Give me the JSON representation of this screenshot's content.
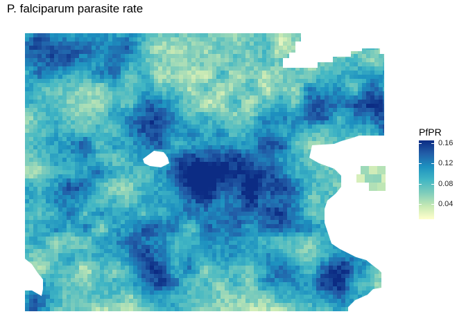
{
  "title": "P. falciparum parasite rate",
  "legend": {
    "title": "PfPR",
    "min": 0.01,
    "max": 0.165,
    "ticks": [
      {
        "value": 0.16,
        "label": "0.16"
      },
      {
        "value": 0.12,
        "label": "0.12"
      },
      {
        "value": 0.08,
        "label": "0.08"
      },
      {
        "value": 0.04,
        "label": "0.04"
      }
    ],
    "colors": [
      "#ffffcc",
      "#c7e9b4",
      "#7fcdbb",
      "#41b6c4",
      "#1d91c0",
      "#225ea8",
      "#0c2c84"
    ]
  }
}
